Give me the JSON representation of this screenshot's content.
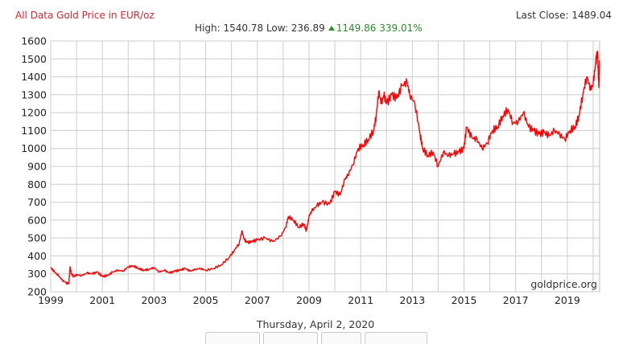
{
  "header": {
    "title": "All Data Gold Price in EUR/oz",
    "last_close_label": "Last Close:",
    "last_close_value": "1489.04",
    "high_label": "High:",
    "high_value": "1540.78",
    "low_label": "Low:",
    "low_value": "236.89",
    "change_value": "1149.86",
    "change_pct": "339.01%"
  },
  "footer": {
    "date": "Thursday, April 2, 2020",
    "watermark": "goldprice.org",
    "buttons": [
      "",
      "",
      "",
      ""
    ]
  },
  "colors": {
    "line": "#ff0000",
    "title": "#d9262e",
    "positive": "#2e8b2e",
    "grid": "#cccccc"
  },
  "chart_data": {
    "type": "line",
    "title": "All Data Gold Price in EUR/oz",
    "xlabel": "",
    "ylabel": "",
    "ylim": [
      200,
      1600
    ],
    "xlim": [
      1999,
      2020.25
    ],
    "y_ticks": [
      200,
      300,
      400,
      500,
      600,
      700,
      800,
      900,
      1000,
      1100,
      1200,
      1300,
      1400,
      1500,
      1600
    ],
    "x_tick_labels": [
      "1999",
      "2001",
      "2003",
      "2005",
      "2007",
      "2009",
      "2011",
      "2013",
      "2015",
      "2017",
      "2019"
    ],
    "grid": true,
    "legend": null,
    "series": [
      {
        "name": "Gold Price EUR/oz",
        "x": [
          1999.0,
          1999.15,
          1999.3,
          1999.45,
          1999.6,
          1999.7,
          1999.75,
          1999.8,
          1999.9,
          2000.0,
          2000.2,
          2000.4,
          2000.6,
          2000.8,
          2001.0,
          2001.2,
          2001.4,
          2001.6,
          2001.8,
          2002.0,
          2002.2,
          2002.4,
          2002.6,
          2002.8,
          2003.0,
          2003.2,
          2003.4,
          2003.6,
          2003.8,
          2004.0,
          2004.2,
          2004.4,
          2004.6,
          2004.8,
          2005.0,
          2005.3,
          2005.6,
          2005.9,
          2006.1,
          2006.3,
          2006.4,
          2006.5,
          2006.6,
          2006.8,
          2007.0,
          2007.3,
          2007.6,
          2007.9,
          2008.1,
          2008.2,
          2008.4,
          2008.6,
          2008.8,
          2008.9,
          2009.0,
          2009.1,
          2009.3,
          2009.5,
          2009.8,
          2010.0,
          2010.2,
          2010.4,
          2010.5,
          2010.7,
          2010.9,
          2011.1,
          2011.3,
          2011.5,
          2011.6,
          2011.7,
          2011.8,
          2011.9,
          2012.0,
          2012.2,
          2012.4,
          2012.6,
          2012.8,
          2012.9,
          2013.1,
          2013.3,
          2013.4,
          2013.6,
          2013.8,
          2014.0,
          2014.2,
          2014.4,
          2014.6,
          2014.8,
          2015.0,
          2015.1,
          2015.3,
          2015.5,
          2015.7,
          2015.9,
          2016.1,
          2016.3,
          2016.5,
          2016.7,
          2016.9,
          2017.1,
          2017.3,
          2017.5,
          2017.7,
          2017.9,
          2018.1,
          2018.3,
          2018.5,
          2018.7,
          2018.9,
          2019.1,
          2019.3,
          2019.45,
          2019.6,
          2019.75,
          2019.9,
          2020.0,
          2020.1,
          2020.17,
          2020.22,
          2020.25
        ],
        "values": [
          335,
          310,
          290,
          265,
          250,
          245,
          340,
          300,
          285,
          295,
          290,
          305,
          300,
          310,
          285,
          290,
          310,
          320,
          315,
          340,
          345,
          330,
          320,
          325,
          335,
          310,
          320,
          305,
          315,
          320,
          330,
          315,
          325,
          330,
          320,
          330,
          350,
          390,
          430,
          470,
          540,
          490,
          475,
          480,
          490,
          500,
          480,
          510,
          560,
          620,
          600,
          560,
          580,
          540,
          620,
          650,
          680,
          700,
          690,
          760,
          740,
          830,
          850,
          910,
          1000,
          1020,
          1050,
          1100,
          1180,
          1320,
          1250,
          1300,
          1250,
          1300,
          1280,
          1350,
          1370,
          1300,
          1250,
          1080,
          1000,
          960,
          980,
          900,
          980,
          960,
          970,
          980,
          1000,
          1120,
          1060,
          1050,
          1000,
          1030,
          1100,
          1120,
          1180,
          1220,
          1140,
          1150,
          1200,
          1120,
          1100,
          1080,
          1090,
          1070,
          1100,
          1080,
          1050,
          1100,
          1120,
          1180,
          1300,
          1400,
          1330,
          1360,
          1480,
          1541,
          1340,
          1489
        ]
      }
    ]
  }
}
